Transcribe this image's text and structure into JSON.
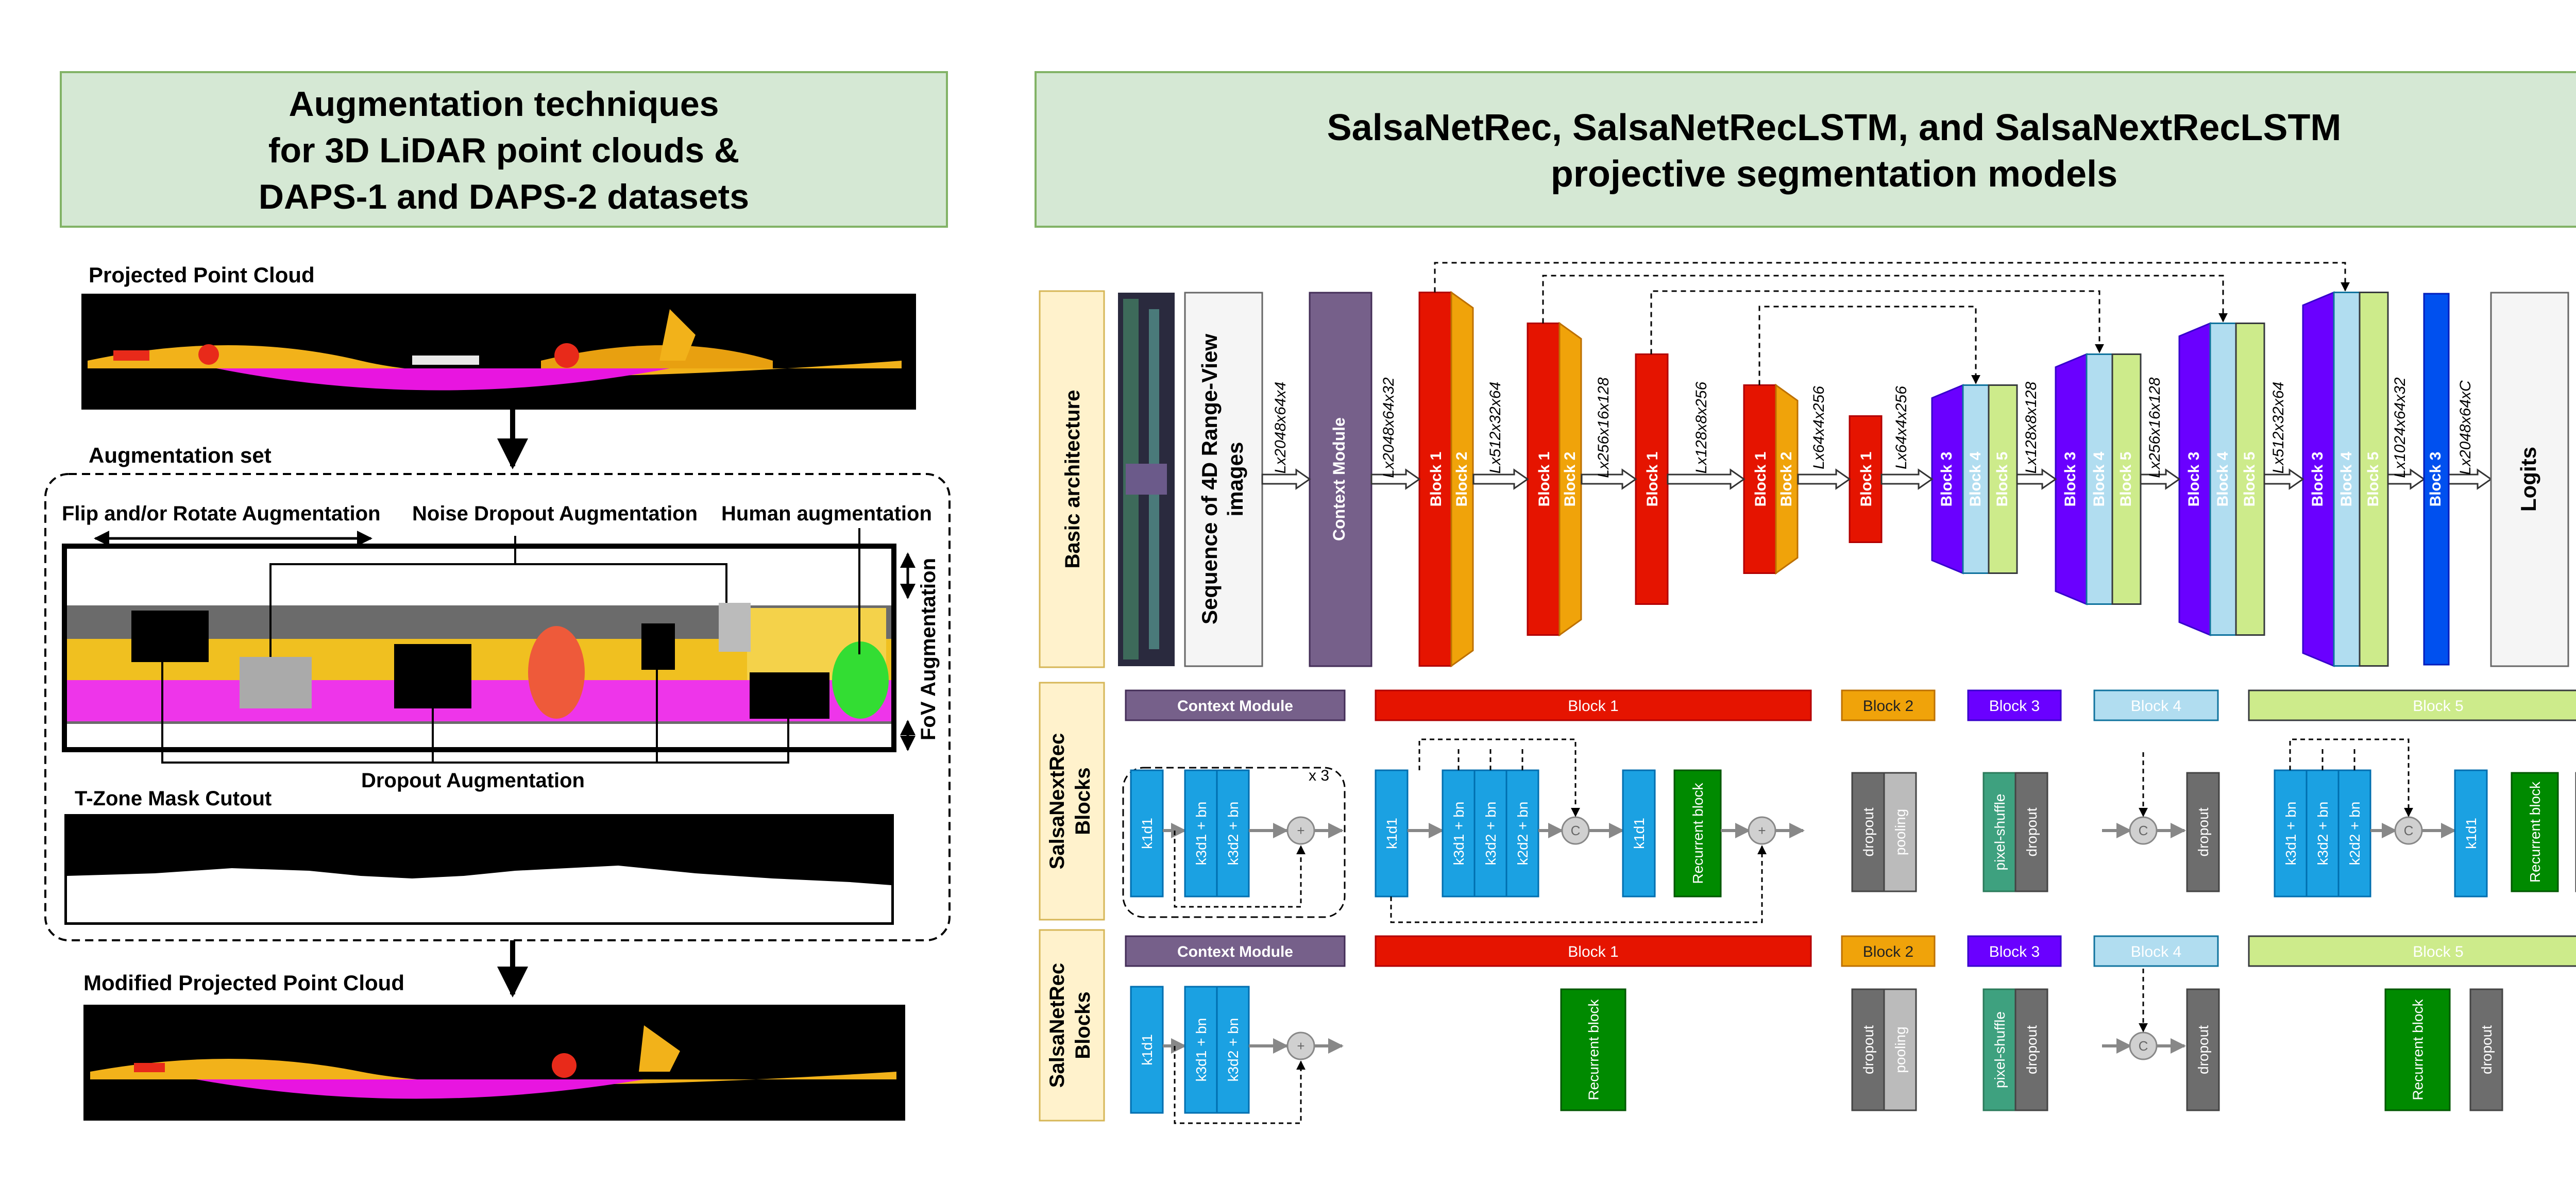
{
  "left_panel": {
    "title_lines": [
      "Augmentation techniques",
      "for 3D LiDAR point clouds &",
      "DAPS-1 and DAPS-2 datasets"
    ],
    "projected_label": "Projected Point Cloud",
    "augset_label": "Augmentation set",
    "flip_label": "Flip and/or Rotate Augmentation",
    "noise_label": "Noise Dropout Augmentation",
    "human_label": "Human augmentation",
    "fov_label": "FoV Augmentation",
    "dropout_label": "Dropout Augmentation",
    "tzone_label": "T-Zone Mask Cutout",
    "modified_label": "Modified Projected Point Cloud"
  },
  "right_panel": {
    "title_lines": [
      "SalsaNetRec, SalsaNetRecLSTM, and SalsaNextRecLSTM",
      "projective segmentation models"
    ],
    "row_labels": {
      "basic": "Basic architecture",
      "next_lines": [
        "SalsaNextRec",
        "Blocks"
      ],
      "rec_lines": [
        "SalsaNetRec",
        "Blocks"
      ]
    },
    "input_lines": [
      "Sequence of 4D Range-View",
      "images"
    ],
    "context_module": "Context Module",
    "logits": "Logits",
    "dims": [
      "Lx2048x64x4",
      "Lx2048x64x32",
      "Lx512x32x64",
      "Lx256x16x128",
      "Lx128x8x256",
      "Lx64x4x256",
      "Lx64x4x256",
      "Lx128x8x128",
      "Lx256x16x128",
      "Lx512x32x64",
      "Lx1024x64x32",
      "Lx2048x64xC"
    ],
    "block_names": [
      "Block 1",
      "Block 2",
      "Block 3",
      "Block 4",
      "Block 5"
    ],
    "layers": {
      "k1d1": "k1d1",
      "k3d1bn": "k3d1 + bn",
      "k3d2bn": "k3d2 + bn",
      "k2d2bn": "k2d2 + bn",
      "recurrent": "Recurrent block",
      "dropout": "dropout",
      "pooling": "pooling",
      "pixel_shuffle": "pixel-shuffle",
      "concat": "C",
      "add": "+",
      "repeat": "x 3"
    }
  },
  "colors": {
    "header_fill": "#d5e8d4",
    "header_stroke": "#82b366",
    "side_label_fill": "#fff2cc",
    "block1": "#e51400",
    "block2": "#f0a30a",
    "block3": "#6a00ff",
    "block4": "#b1ddf0",
    "block5": "#cdeb8b",
    "context": "#76608a",
    "layer_blue": "#1ba1e2",
    "recurrent_green": "#008a00",
    "dropout_gray": "#6d6d6d",
    "pixel_shuffle": "#3ea17f",
    "final_blue": "#0050ef"
  }
}
